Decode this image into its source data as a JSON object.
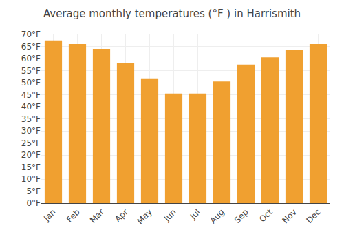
{
  "chart_data": {
    "type": "bar",
    "title": "Average monthly temperatures (°F ) in Harrismith",
    "categories": [
      "Jan",
      "Feb",
      "Mar",
      "Apr",
      "May",
      "Jun",
      "Jul",
      "Aug",
      "Sep",
      "Oct",
      "Nov",
      "Dec"
    ],
    "values": [
      67.5,
      66.0,
      64.0,
      58.0,
      51.5,
      45.5,
      45.5,
      50.5,
      57.5,
      60.5,
      63.5,
      66.0
    ],
    "color": "#F0A030",
    "ylim": [
      0,
      70
    ],
    "yticks": [
      {
        "value": 0,
        "label": "0°F"
      },
      {
        "value": 5,
        "label": "5°F"
      },
      {
        "value": 10,
        "label": "10°F"
      },
      {
        "value": 15,
        "label": "15°F"
      },
      {
        "value": 20,
        "label": "20°F"
      },
      {
        "value": 25,
        "label": "25°F"
      },
      {
        "value": 30,
        "label": "30°F"
      },
      {
        "value": 35,
        "label": "35°F"
      },
      {
        "value": 40,
        "label": "40°F"
      },
      {
        "value": 45,
        "label": "45°F"
      },
      {
        "value": 50,
        "label": "50°F"
      },
      {
        "value": 55,
        "label": "55°F"
      },
      {
        "value": 60,
        "label": "60°F"
      },
      {
        "value": 65,
        "label": "65°F"
      },
      {
        "value": 70,
        "label": "70°F"
      }
    ],
    "grid": true
  }
}
